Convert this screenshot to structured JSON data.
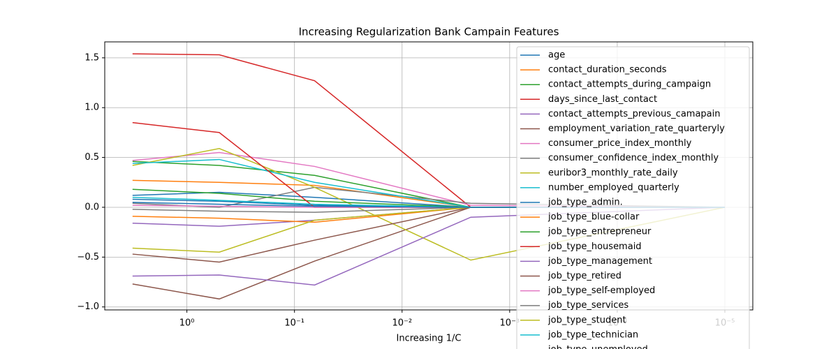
{
  "chart_data": {
    "type": "line",
    "title": "Increasing Regularization Bank Campain Features",
    "xlabel": "Increasing 1/C",
    "x": [
      3.2,
      0.5,
      0.065,
      0.0023,
      1e-05
    ],
    "xscale": "log",
    "xlim": [
      5.8,
      5.5e-06
    ],
    "xticks": [
      {
        "value": 1,
        "label": "10⁰"
      },
      {
        "value": 0.1,
        "label": "10⁻¹"
      },
      {
        "value": 0.01,
        "label": "10⁻²"
      },
      {
        "value": 0.001,
        "label": "10⁻³"
      },
      {
        "value": 0.0001,
        "label": "10⁻⁴"
      },
      {
        "value": 1e-05,
        "label": "10⁻⁵"
      }
    ],
    "ylim": [
      -1.03,
      1.66
    ],
    "yticks": [
      {
        "value": -1,
        "label": "−1.0"
      },
      {
        "value": -0.5,
        "label": "−0.5"
      },
      {
        "value": 0,
        "label": "0.0"
      },
      {
        "value": 0.5,
        "label": "0.5"
      },
      {
        "value": 1,
        "label": "1.0"
      },
      {
        "value": 1.5,
        "label": "1.5"
      }
    ],
    "grid": true,
    "legend": "upper right",
    "series": [
      {
        "name": "age",
        "color": "#1f77b4",
        "values": [
          0.12,
          0.15,
          0.1,
          0,
          0
        ]
      },
      {
        "name": "contact_duration_seconds",
        "color": "#ff7f0e",
        "values": [
          0.27,
          0.25,
          0.22,
          0,
          0
        ]
      },
      {
        "name": "contact_attempts_during_campaign",
        "color": "#2ca02c",
        "values": [
          0.46,
          0.42,
          0.32,
          0,
          0
        ]
      },
      {
        "name": "days_since_last_contact",
        "color": "#d62728",
        "values": [
          1.54,
          1.53,
          1.27,
          0,
          0
        ]
      },
      {
        "name": "contact_attempts_previous_camapain",
        "color": "#9467bd",
        "values": [
          -0.16,
          -0.19,
          -0.13,
          0,
          0
        ]
      },
      {
        "name": "employment_variation_rate_quarteryly",
        "color": "#8c564b",
        "values": [
          -0.77,
          -0.92,
          -0.54,
          0,
          0
        ]
      },
      {
        "name": "consumer_price_index_monthly",
        "color": "#e377c2",
        "values": [
          0.47,
          0.55,
          0.41,
          0.02,
          0
        ]
      },
      {
        "name": "consumer_confidence_index_monthly",
        "color": "#7f7f7f",
        "values": [
          0.04,
          0.0,
          0.2,
          0.04,
          0
        ]
      },
      {
        "name": "euribor3_monthly_rate_daily",
        "color": "#bcbd22",
        "values": [
          0.42,
          0.59,
          0.2,
          -0.53,
          0
        ]
      },
      {
        "name": "number_employed_quarterly",
        "color": "#17becf",
        "values": [
          0.44,
          0.48,
          0.25,
          0,
          0
        ]
      },
      {
        "name": "job_type_admin.",
        "color": "#1f77b4",
        "values": [
          0.08,
          0.06,
          0.02,
          0,
          0
        ]
      },
      {
        "name": "job_type_blue-collar",
        "color": "#ff7f0e",
        "values": [
          -0.09,
          -0.11,
          -0.15,
          0,
          0
        ]
      },
      {
        "name": "job_type_entrepreneur",
        "color": "#2ca02c",
        "values": [
          0.18,
          0.14,
          0.06,
          0,
          0
        ]
      },
      {
        "name": "job_type_housemaid",
        "color": "#d62728",
        "values": [
          0.85,
          0.75,
          0.0,
          0,
          0
        ]
      },
      {
        "name": "job_type_management",
        "color": "#9467bd",
        "values": [
          -0.69,
          -0.68,
          -0.78,
          -0.1,
          0
        ]
      },
      {
        "name": "job_type_retired",
        "color": "#8c564b",
        "values": [
          -0.47,
          -0.55,
          -0.33,
          0,
          0
        ]
      },
      {
        "name": "job_type_self-employed",
        "color": "#e377c2",
        "values": [
          0.02,
          0.01,
          0.0,
          0,
          0
        ]
      },
      {
        "name": "job_type_services",
        "color": "#7f7f7f",
        "values": [
          -0.02,
          -0.04,
          -0.05,
          0,
          0
        ]
      },
      {
        "name": "job_type_student",
        "color": "#bcbd22",
        "values": [
          -0.41,
          -0.45,
          -0.13,
          0,
          0
        ]
      },
      {
        "name": "job_type_technician",
        "color": "#17becf",
        "values": [
          0.1,
          0.07,
          0.03,
          0,
          0
        ]
      },
      {
        "name": "job_type_unemployed",
        "color": "#1f77b4",
        "values": [
          0.05,
          0.03,
          0.01,
          0,
          0
        ]
      }
    ]
  }
}
